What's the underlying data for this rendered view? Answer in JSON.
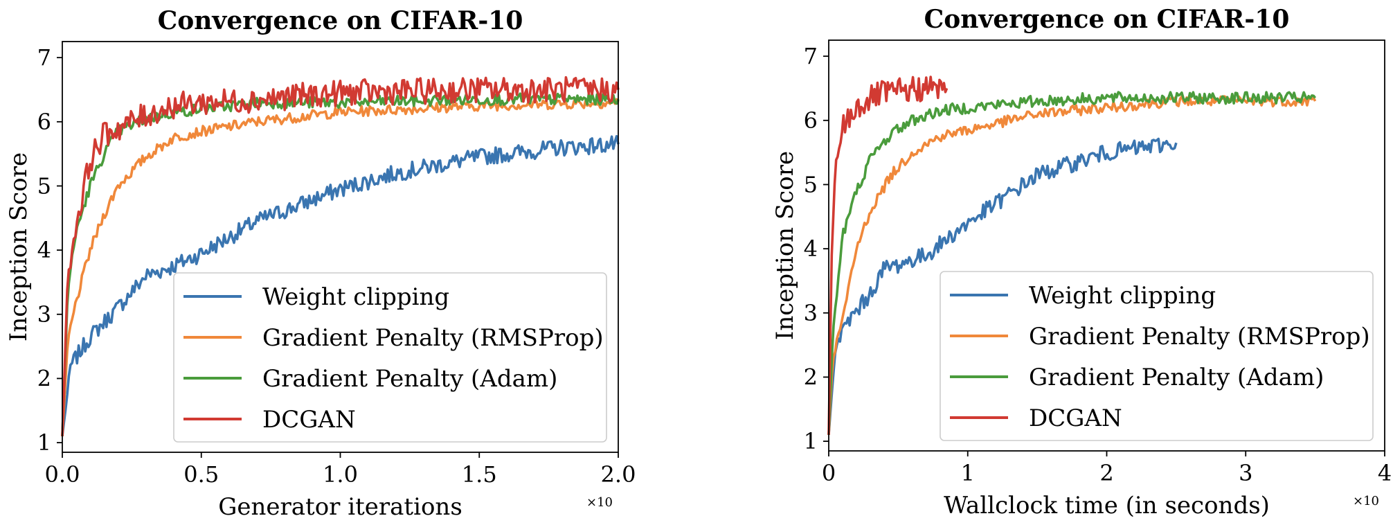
{
  "chart_data": [
    {
      "type": "line",
      "title": "Convergence on CIFAR-10",
      "xlabel": "Generator iterations",
      "ylabel": "Inception Score",
      "x_multiplier": "×10",
      "xlim": [
        0,
        2.0
      ],
      "ylim": [
        0.85,
        7.25
      ],
      "xticks": [
        0.0,
        0.5,
        1.0,
        1.5,
        2.0
      ],
      "xtick_labels": [
        "0.0",
        "0.5",
        "1.0",
        "1.5",
        "2.0"
      ],
      "yticks": [
        1,
        2,
        3,
        4,
        5,
        6,
        7
      ],
      "ytick_labels": [
        "1",
        "2",
        "3",
        "4",
        "5",
        "6",
        "7"
      ],
      "legend_position": "lower-right",
      "series": [
        {
          "name": "Weight clipping",
          "color": "#3a75b0",
          "x": [
            0,
            0.03,
            0.1,
            0.2,
            0.3,
            0.4,
            0.5,
            0.7,
            1.0,
            1.2,
            1.5,
            1.8,
            2.0
          ],
          "y": [
            1.1,
            2.2,
            2.65,
            3.1,
            3.6,
            3.75,
            3.95,
            4.45,
            4.95,
            5.2,
            5.45,
            5.6,
            5.65
          ]
        },
        {
          "name": "Gradient Penalty (RMSProp)",
          "color": "#f0883a",
          "x": [
            0,
            0.02,
            0.05,
            0.1,
            0.15,
            0.2,
            0.3,
            0.4,
            0.5,
            0.7,
            1.0,
            1.5,
            2.0
          ],
          "y": [
            1.1,
            2.6,
            3.2,
            4.0,
            4.55,
            5.0,
            5.45,
            5.75,
            5.85,
            6.0,
            6.15,
            6.25,
            6.3
          ]
        },
        {
          "name": "Gradient Penalty (Adam)",
          "color": "#4a9c3c",
          "x": [
            0,
            0.02,
            0.05,
            0.1,
            0.15,
            0.2,
            0.3,
            0.4,
            0.5,
            0.7,
            1.0,
            1.5,
            2.0
          ],
          "y": [
            1.1,
            3.4,
            4.3,
            5.0,
            5.5,
            5.85,
            6.05,
            6.15,
            6.2,
            6.3,
            6.3,
            6.35,
            6.35
          ]
        },
        {
          "name": "DCGAN",
          "color": "#d13a32",
          "x": [
            0,
            0.02,
            0.05,
            0.1,
            0.15,
            0.2,
            0.3,
            0.4,
            0.5,
            0.7,
            1.0,
            1.5,
            2.0
          ],
          "y": [
            1.1,
            3.6,
            4.4,
            5.4,
            5.8,
            5.9,
            6.1,
            6.25,
            6.3,
            6.35,
            6.45,
            6.5,
            6.5
          ]
        }
      ]
    },
    {
      "type": "line",
      "title": "Convergence on CIFAR-10",
      "xlabel": "Wallclock time (in seconds)",
      "ylabel": "Inception Score",
      "x_multiplier": "×10",
      "xlim": [
        0,
        4
      ],
      "ylim": [
        0.85,
        7.25
      ],
      "xticks": [
        0,
        1,
        2,
        3,
        4
      ],
      "xtick_labels": [
        "0",
        "1",
        "2",
        "3",
        "4"
      ],
      "yticks": [
        1,
        2,
        3,
        4,
        5,
        6,
        7
      ],
      "ytick_labels": [
        "1",
        "2",
        "3",
        "4",
        "5",
        "6",
        "7"
      ],
      "legend_position": "lower-right",
      "series": [
        {
          "name": "Weight clipping",
          "color": "#3a75b0",
          "x": [
            0,
            0.05,
            0.15,
            0.3,
            0.4,
            0.5,
            0.7,
            1.0,
            1.5,
            2.0,
            2.5
          ],
          "y": [
            1.1,
            2.5,
            2.9,
            3.3,
            3.7,
            3.75,
            3.9,
            4.4,
            5.15,
            5.5,
            5.65
          ]
        },
        {
          "name": "Gradient Penalty (RMSProp)",
          "color": "#f0883a",
          "x": [
            0,
            0.03,
            0.1,
            0.2,
            0.3,
            0.45,
            0.6,
            0.8,
            1.0,
            1.5,
            2.0,
            2.5,
            3.0,
            3.5
          ],
          "y": [
            1.1,
            2.3,
            2.9,
            4.0,
            4.6,
            5.15,
            5.5,
            5.75,
            5.85,
            6.1,
            6.2,
            6.3,
            6.3,
            6.3
          ]
        },
        {
          "name": "Gradient Penalty (Adam)",
          "color": "#4a9c3c",
          "x": [
            0,
            0.03,
            0.1,
            0.2,
            0.3,
            0.45,
            0.6,
            0.8,
            1.0,
            1.5,
            2.0,
            2.5,
            3.0,
            3.5
          ],
          "y": [
            1.1,
            2.7,
            4.2,
            4.9,
            5.4,
            5.8,
            6.0,
            6.15,
            6.2,
            6.3,
            6.35,
            6.35,
            6.35,
            6.35
          ]
        },
        {
          "name": "DCGAN",
          "color": "#d13a32",
          "x": [
            0,
            0.02,
            0.05,
            0.1,
            0.2,
            0.35,
            0.5,
            0.7,
            0.85
          ],
          "y": [
            1.1,
            3.8,
            5.3,
            5.9,
            6.2,
            6.4,
            6.45,
            6.5,
            6.5
          ]
        }
      ]
    }
  ]
}
